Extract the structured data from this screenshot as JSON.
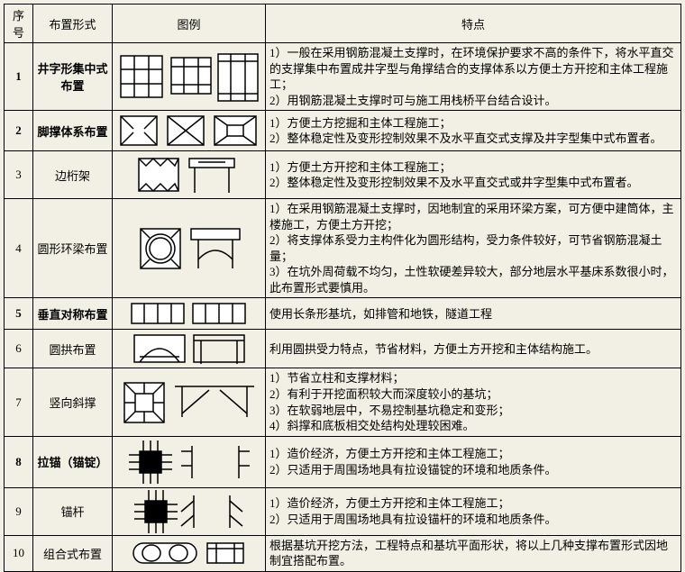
{
  "header": {
    "num": "序号",
    "form": "布置形式",
    "icon": "图例",
    "feat": "特点"
  },
  "rows": [
    {
      "num": "1",
      "form": "井字形集中式布置",
      "bold": true,
      "feat": "1）一般在采用钢筋混凝土支撑时，在环境保护要求不高的条件下，将水平直交的支撑集中布置成井字型与角撑结合的支撑体系以方便土方开挖和主体工程施工；\n2）用钢筋混凝土支撑时可与施工用栈桥平台结合设计。"
    },
    {
      "num": "2",
      "form": "脚撑体系布置",
      "bold": true,
      "feat": "1）方便土方挖掘和主体工程施工；\n2）整体稳定性及变形控制效果不及水平直交式支撑及井字型集中式布置者。"
    },
    {
      "num": "3",
      "form": "边桁架",
      "bold": false,
      "feat": "1）方便土方开挖和主体工程施工；\n2）整体稳定性及变形控制效果不及水平直交式或井字型集中式布置者。"
    },
    {
      "num": "4",
      "form": "圆形环梁布置",
      "bold": false,
      "feat": "1）在采用钢筋混凝土支撑时，因地制宜的采用环梁方案，可方便中建筒体，主楼施工，方便土方开挖；\n2）将支撑体系受力主构件化为圆形结构，受力条件较好，可节省钢筋混凝土量；\n3）在坑外周荷载不均匀，土性软硬差异较大，部分地层水平基床系数很小时，此布置形式要慎用。"
    },
    {
      "num": "5",
      "form": "垂直对称布置",
      "bold": true,
      "feat": "使用长条形基坑，如排管和地铁，隧道工程"
    },
    {
      "num": "6",
      "form": "圆拱布置",
      "bold": false,
      "feat": "利用圆拱受力特点，节省材料，方便土方开挖和主体结构施工。"
    },
    {
      "num": "7",
      "form": "竖向斜撑",
      "bold": false,
      "feat": "1）节省立柱和支撑材料；\n2）有利于开挖面积较大而深度较小的基坑；\n3）在软弱地层中，不易控制基坑稳定和变形；\n4）斜撑和底板相交处结构处理较困难。"
    },
    {
      "num": "8",
      "form": "拉锚（锚锭）",
      "bold": true,
      "feat": "1）造价经济，方便土方开挖和主体工程施工；\n2）只适用于周围场地具有拉设锚锭的环境和地质条件。"
    },
    {
      "num": "9",
      "form": "锚杆",
      "bold": false,
      "feat": "1）造价经济，方便土方开挖和主体工程施工；\n2）只适用于周围场地具有拉设锚杆的环境和地质条件。"
    },
    {
      "num": "10",
      "form": "组合式布置",
      "bold": false,
      "feat": "根据基坑开挖方法，工程特点和基坑平面形状，将以上几种支撑布置形式因地制宜搭配布置。"
    }
  ],
  "svg_stroke": "#000000",
  "svg_bg": "#ffffff"
}
